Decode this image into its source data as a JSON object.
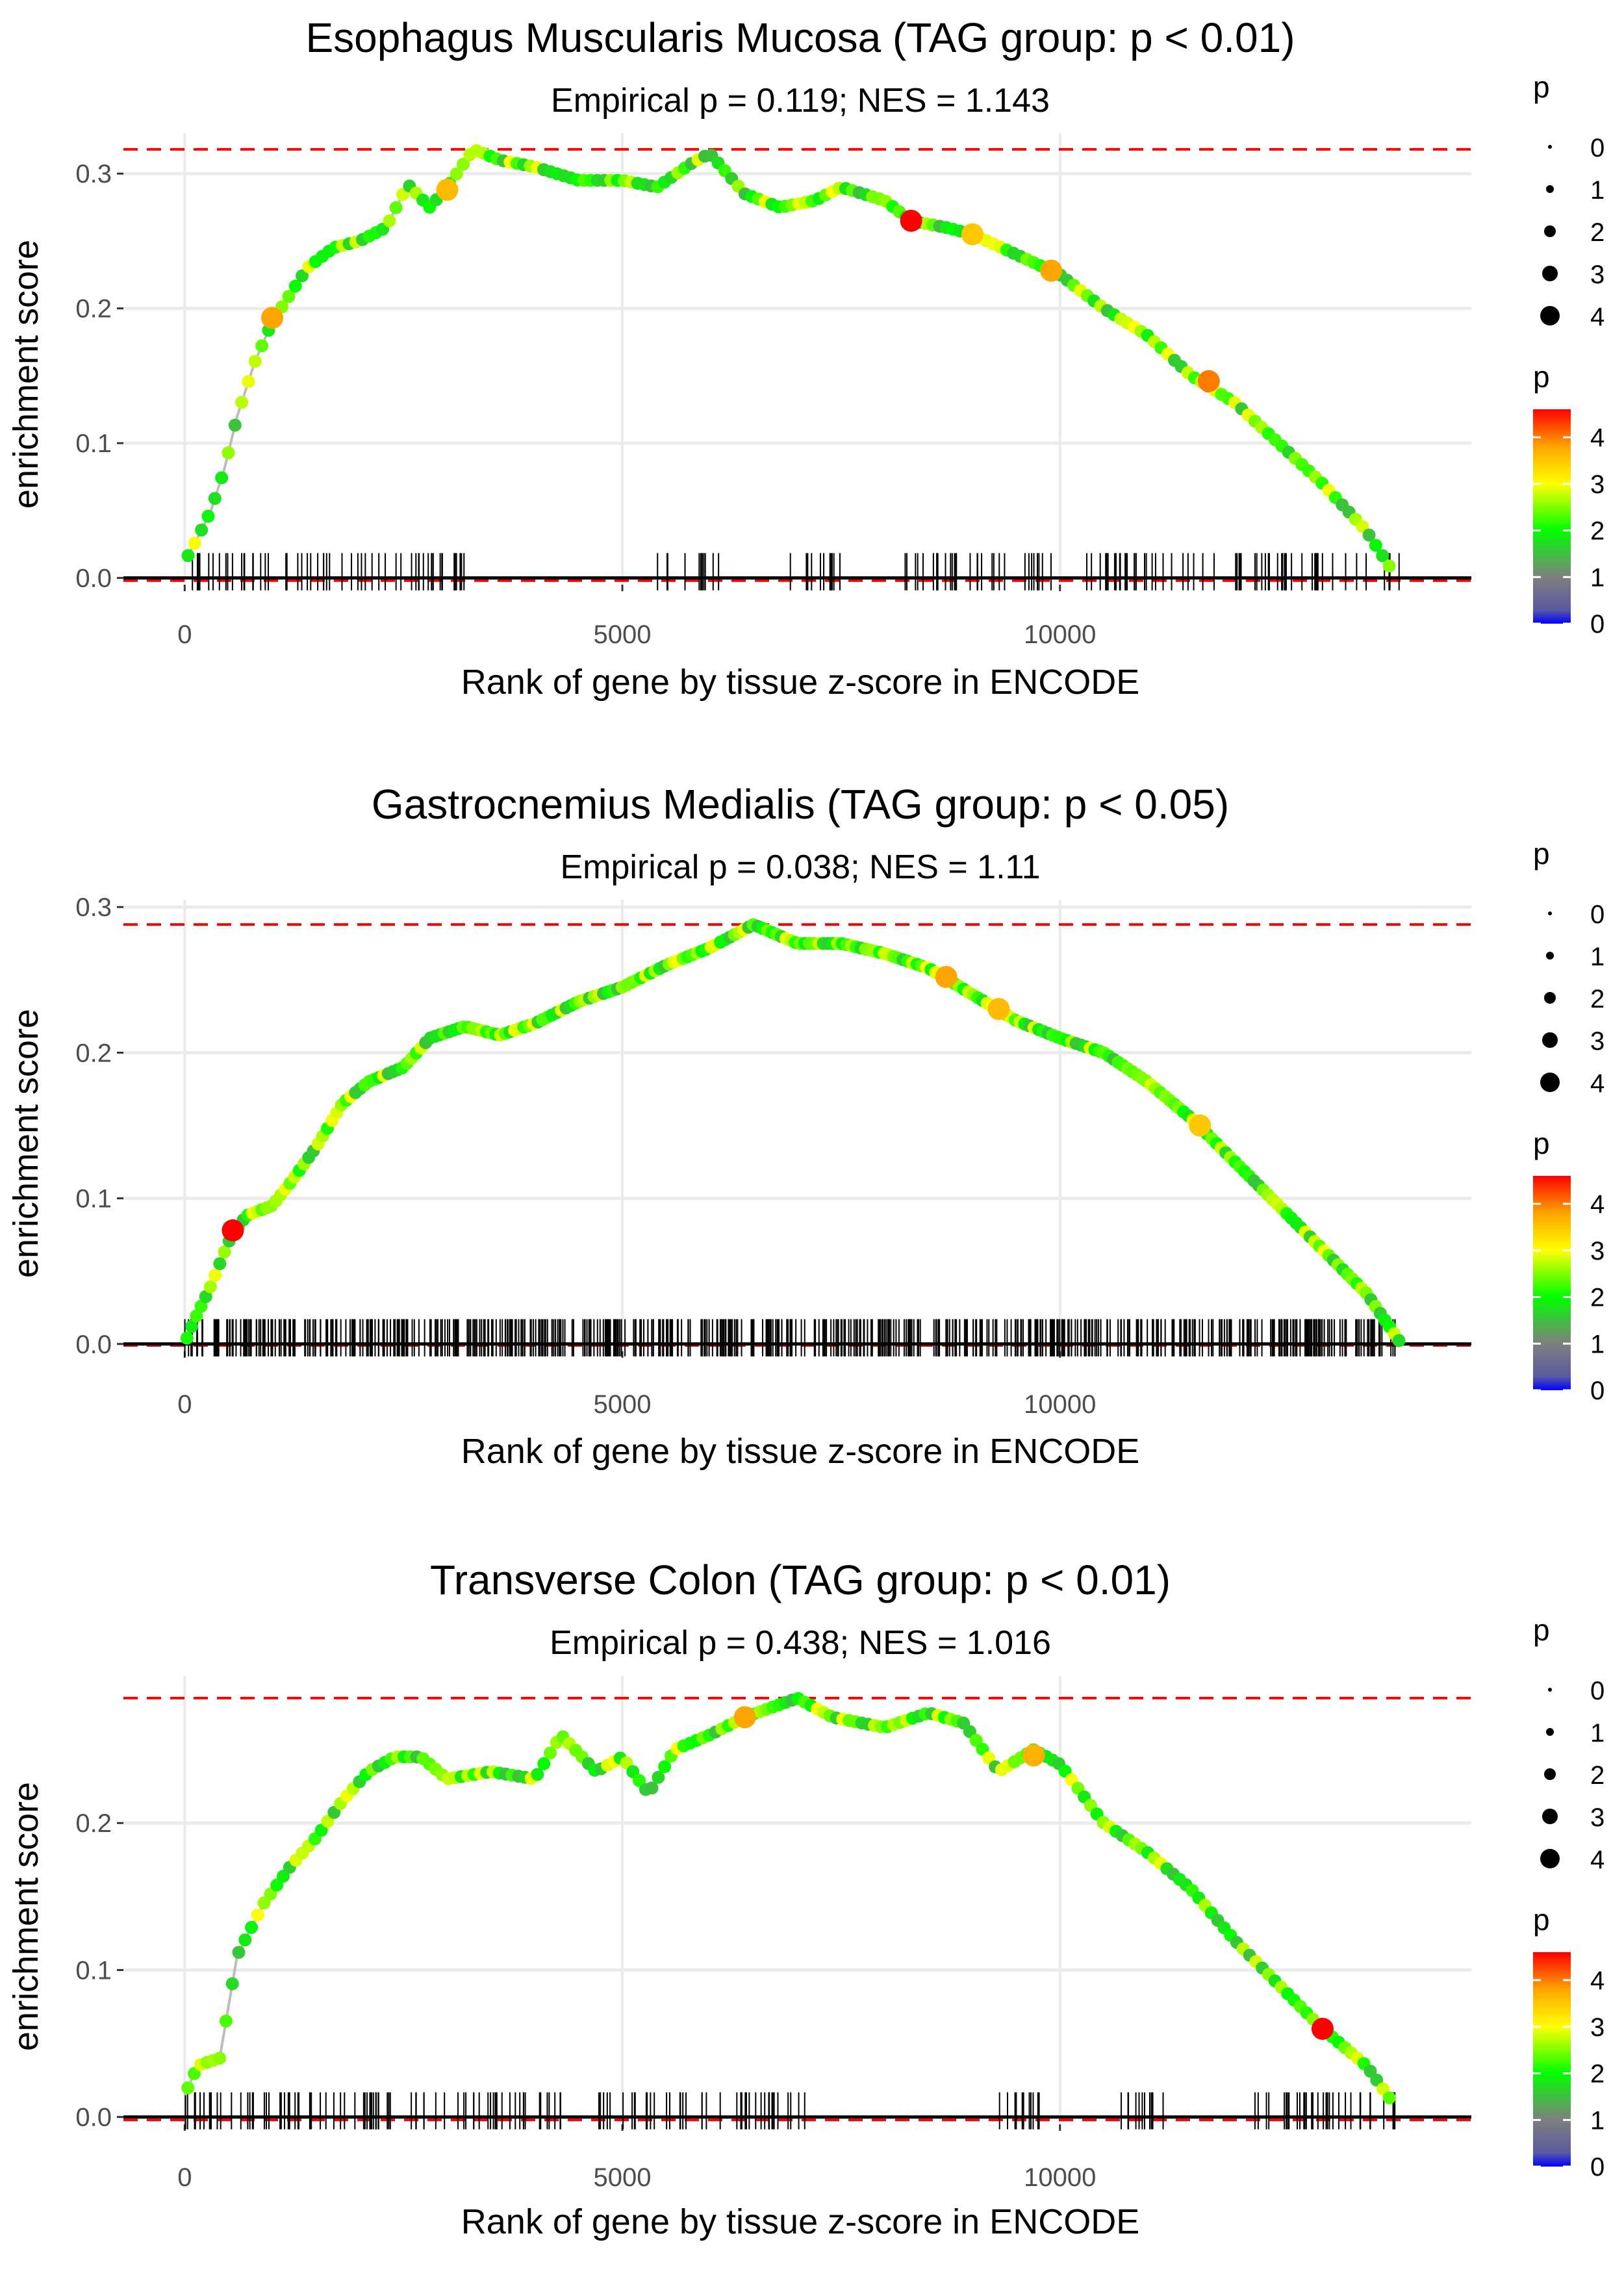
{
  "palette": {
    "background": "#ffffff",
    "gridline": "#ebebeb",
    "curve_line": "#bdbdbd",
    "hit_ticks": "#000000",
    "max_line": "#ff0000",
    "tick_text": "#4d4d4d",
    "gradient": [
      "#0000ff",
      "#5a5aa0",
      "#7f7f7f",
      "#00ff00",
      "#ffff00",
      "#ffa500",
      "#ff0000"
    ],
    "gradient_stops": [
      0,
      0.3,
      1,
      2,
      3,
      3.8,
      4.6
    ]
  },
  "chart_data": [
    {
      "type": "line",
      "title": "Esophagus Muscularis Mucosa (TAG group: p < 0.01)",
      "subtitle": "Empirical p = 0.119; NES = 1.143",
      "xlabel": "Rank of gene by tissue z-score in ENCODE",
      "ylabel": "enrichment score",
      "xlim": [
        -700,
        14700
      ],
      "ylim": [
        -0.005,
        0.33
      ],
      "x_ticks": [
        0,
        5000,
        10000
      ],
      "x_tick_labels": [
        "0",
        "5000",
        "10000"
      ],
      "y_ticks": [
        0.0,
        0.1,
        0.2,
        0.3
      ],
      "y_tick_labels": [
        "0.0",
        "0.1",
        "0.2",
        "0.3"
      ],
      "max_es": 0.318,
      "min_es": -0.002,
      "n_genes": 13800,
      "n_hits": 180,
      "hit_seed": 11,
      "hit_ranges": [
        [
          0,
          3300
        ],
        [
          5400,
          6100
        ],
        [
          6900,
          7500
        ],
        [
          8200,
          9900
        ],
        [
          10300,
          13900
        ]
      ],
      "curve": [
        [
          0,
          0.012
        ],
        [
          150,
          0.03
        ],
        [
          300,
          0.05
        ],
        [
          450,
          0.08
        ],
        [
          600,
          0.12
        ],
        [
          800,
          0.16
        ],
        [
          1000,
          0.19
        ],
        [
          1200,
          0.21
        ],
        [
          1400,
          0.23
        ],
        [
          1700,
          0.245
        ],
        [
          2000,
          0.25
        ],
        [
          2300,
          0.26
        ],
        [
          2550,
          0.292
        ],
        [
          2800,
          0.275
        ],
        [
          3000,
          0.29
        ],
        [
          3300,
          0.318
        ],
        [
          3600,
          0.31
        ],
        [
          4000,
          0.305
        ],
        [
          4500,
          0.295
        ],
        [
          5000,
          0.295
        ],
        [
          5400,
          0.29
        ],
        [
          5800,
          0.308
        ],
        [
          6000,
          0.315
        ],
        [
          6400,
          0.285
        ],
        [
          6800,
          0.275
        ],
        [
          7200,
          0.28
        ],
        [
          7500,
          0.29
        ],
        [
          8000,
          0.28
        ],
        [
          8300,
          0.265
        ],
        [
          8700,
          0.26
        ],
        [
          9000,
          0.255
        ],
        [
          9500,
          0.24
        ],
        [
          10000,
          0.225
        ],
        [
          10500,
          0.2
        ],
        [
          11000,
          0.18
        ],
        [
          11500,
          0.15
        ],
        [
          12000,
          0.13
        ],
        [
          12500,
          0.1
        ],
        [
          13000,
          0.07
        ],
        [
          13500,
          0.035
        ],
        [
          13800,
          0.005
        ]
      ],
      "highlight_points": [
        {
          "x": 1000,
          "y": 0.193,
          "p": 3.8
        },
        {
          "x": 3000,
          "y": 0.288,
          "p": 3.6
        },
        {
          "x": 8300,
          "y": 0.265,
          "p": 4.6
        },
        {
          "x": 9000,
          "y": 0.255,
          "p": 3.5
        },
        {
          "x": 9900,
          "y": 0.228,
          "p": 3.8
        },
        {
          "x": 11700,
          "y": 0.146,
          "p": 4.0
        }
      ],
      "legend_size": {
        "title": "p",
        "labels": [
          "0",
          "1",
          "2",
          "3",
          "4"
        ]
      },
      "legend_color": {
        "title": "p",
        "labels": [
          "4",
          "3",
          "2",
          "1",
          "0"
        ],
        "range": [
          0,
          4.6
        ]
      }
    },
    {
      "type": "line",
      "title": "Gastrocnemius Medialis (TAG group: p < 0.05)",
      "subtitle": "Empirical p = 0.038; NES = 1.11",
      "xlabel": "Rank of gene by tissue z-score in ENCODE",
      "ylabel": "enrichment score",
      "xlim": [
        -700,
        14700
      ],
      "ylim": [
        -0.005,
        0.305
      ],
      "x_ticks": [
        0,
        5000,
        10000
      ],
      "x_tick_labels": [
        "0",
        "5000",
        "10000"
      ],
      "y_ticks": [
        0.0,
        0.1,
        0.2,
        0.3
      ],
      "y_tick_labels": [
        "0.0",
        "0.1",
        "0.2",
        "0.3"
      ],
      "max_es": 0.288,
      "min_es": -0.001,
      "n_genes": 13900,
      "n_hits": 620,
      "hit_seed": 23,
      "hit_ranges": [
        [
          0,
          13900
        ]
      ],
      "curve": [
        [
          0,
          0.0
        ],
        [
          100,
          0.015
        ],
        [
          300,
          0.04
        ],
        [
          500,
          0.07
        ],
        [
          700,
          0.088
        ],
        [
          1000,
          0.095
        ],
        [
          1200,
          0.11
        ],
        [
          1500,
          0.135
        ],
        [
          1800,
          0.165
        ],
        [
          2100,
          0.18
        ],
        [
          2500,
          0.19
        ],
        [
          2800,
          0.21
        ],
        [
          3200,
          0.218
        ],
        [
          3600,
          0.212
        ],
        [
          4000,
          0.22
        ],
        [
          4500,
          0.235
        ],
        [
          5000,
          0.245
        ],
        [
          5500,
          0.26
        ],
        [
          6000,
          0.272
        ],
        [
          6500,
          0.288
        ],
        [
          7000,
          0.275
        ],
        [
          7500,
          0.275
        ],
        [
          8000,
          0.268
        ],
        [
          8500,
          0.258
        ],
        [
          9000,
          0.24
        ],
        [
          9500,
          0.222
        ],
        [
          10000,
          0.21
        ],
        [
          10500,
          0.2
        ],
        [
          11000,
          0.18
        ],
        [
          11500,
          0.155
        ],
        [
          12000,
          0.125
        ],
        [
          12500,
          0.095
        ],
        [
          13000,
          0.065
        ],
        [
          13500,
          0.035
        ],
        [
          13900,
          0.0
        ]
      ],
      "highlight_points": [
        {
          "x": 550,
          "y": 0.078,
          "p": 4.6
        },
        {
          "x": 8700,
          "y": 0.252,
          "p": 3.8
        },
        {
          "x": 9300,
          "y": 0.23,
          "p": 3.6
        },
        {
          "x": 11600,
          "y": 0.15,
          "p": 3.5
        }
      ],
      "legend_size": {
        "title": "p",
        "labels": [
          "0",
          "1",
          "2",
          "3",
          "4"
        ]
      },
      "legend_color": {
        "title": "p",
        "labels": [
          "4",
          "3",
          "2",
          "1",
          "0"
        ],
        "range": [
          0,
          4.6
        ]
      }
    },
    {
      "type": "line",
      "title": "Transverse Colon (TAG group: p < 0.01)",
      "subtitle": "Empirical p = 0.438; NES = 1.016",
      "xlabel": "Rank of gene by tissue z-score in ENCODE",
      "ylabel": "enrichment score",
      "xlim": [
        -700,
        14700
      ],
      "ylim": [
        -0.005,
        0.3
      ],
      "x_ticks": [
        0,
        5000,
        10000
      ],
      "x_tick_labels": [
        "0",
        "5000",
        "10000"
      ],
      "y_ticks": [
        0.0,
        0.1,
        0.2
      ],
      "y_tick_labels": [
        "0.0",
        "0.1",
        "0.2"
      ],
      "max_es": 0.285,
      "min_es": -0.002,
      "n_genes": 13900,
      "n_hits": 190,
      "hit_seed": 37,
      "hit_ranges": [
        [
          0,
          4300
        ],
        [
          4700,
          7100
        ],
        [
          9300,
          9800
        ],
        [
          10700,
          11200
        ],
        [
          12200,
          13900
        ]
      ],
      "curve": [
        [
          0,
          0.015
        ],
        [
          150,
          0.035
        ],
        [
          400,
          0.04
        ],
        [
          600,
          0.11
        ],
        [
          900,
          0.145
        ],
        [
          1200,
          0.17
        ],
        [
          1500,
          0.19
        ],
        [
          1800,
          0.215
        ],
        [
          2100,
          0.235
        ],
        [
          2400,
          0.245
        ],
        [
          2700,
          0.245
        ],
        [
          3000,
          0.23
        ],
        [
          3500,
          0.235
        ],
        [
          4000,
          0.23
        ],
        [
          4300,
          0.26
        ],
        [
          4700,
          0.235
        ],
        [
          5000,
          0.245
        ],
        [
          5300,
          0.22
        ],
        [
          5600,
          0.25
        ],
        [
          6000,
          0.26
        ],
        [
          6400,
          0.272
        ],
        [
          7000,
          0.285
        ],
        [
          7400,
          0.272
        ],
        [
          8000,
          0.265
        ],
        [
          8500,
          0.275
        ],
        [
          8900,
          0.268
        ],
        [
          9300,
          0.235
        ],
        [
          9700,
          0.25
        ],
        [
          10000,
          0.24
        ],
        [
          10500,
          0.2
        ],
        [
          11000,
          0.18
        ],
        [
          11500,
          0.155
        ],
        [
          12000,
          0.12
        ],
        [
          12500,
          0.09
        ],
        [
          13000,
          0.06
        ],
        [
          13500,
          0.035
        ],
        [
          13800,
          0.01
        ]
      ],
      "highlight_points": [
        {
          "x": 6400,
          "y": 0.272,
          "p": 3.8
        },
        {
          "x": 9700,
          "y": 0.246,
          "p": 3.7
        },
        {
          "x": 13000,
          "y": 0.06,
          "p": 4.6
        }
      ],
      "legend_size": {
        "title": "p",
        "labels": [
          "0",
          "1",
          "2",
          "3",
          "4"
        ]
      },
      "legend_color": {
        "title": "p",
        "labels": [
          "4",
          "3",
          "2",
          "1",
          "0"
        ],
        "range": [
          0,
          4.6
        ]
      }
    }
  ]
}
